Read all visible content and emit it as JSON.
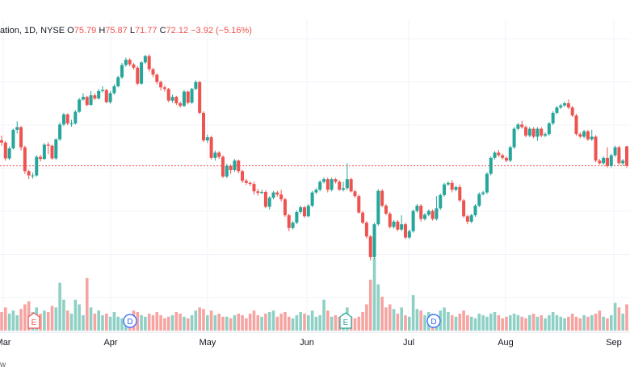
{
  "header": {
    "symbol_fragment": "ation, 1D, NYSE",
    "open_label": "O",
    "open": "75.79",
    "high_label": "H",
    "high": "75.87",
    "low_label": "L",
    "low": "71.77",
    "close_label": "C",
    "close": "72.12",
    "change": "−3.92 (−5.16%)"
  },
  "watermark_fragment": "w",
  "colors": {
    "up": "#26a69a",
    "down": "#ef5350",
    "up_volume": "#8fd0c5",
    "down_volume": "#f5a4a2",
    "grid": "#f0f3fa",
    "price_line": "#ef5350"
  },
  "chart_data": {
    "type": "candlestick",
    "x_axis_labels": [
      "Mar",
      "Apr",
      "May",
      "Jun",
      "Jul",
      "Aug",
      "Sep"
    ],
    "last_price_line": 72.12,
    "events": [
      {
        "type": "earnings",
        "label": "E",
        "month": "Mar"
      },
      {
        "type": "dividend",
        "label": "D",
        "month": "Apr"
      },
      {
        "type": "earnings",
        "label": "E",
        "month": "Jun"
      },
      {
        "type": "dividend",
        "label": "D",
        "month": "Jul"
      }
    ],
    "candles": [
      [
        76.9,
        76.5,
        77.8,
        75.9,
        24
      ],
      [
        76.5,
        73.5,
        76.8,
        73.1,
        30
      ],
      [
        73.5,
        75.4,
        75.8,
        73.2,
        22
      ],
      [
        75.4,
        78.9,
        79.1,
        75.2,
        26
      ],
      [
        78.9,
        79.4,
        80.5,
        78.2,
        20
      ],
      [
        79.4,
        75.6,
        79.6,
        75.0,
        28
      ],
      [
        75.6,
        71.1,
        75.9,
        70.6,
        34
      ],
      [
        71.1,
        70.3,
        71.4,
        69.6,
        38
      ],
      [
        70.3,
        70.3,
        70.8,
        69.7,
        24
      ],
      [
        70.3,
        73.8,
        74.1,
        70.1,
        30
      ],
      [
        73.8,
        73.4,
        74.2,
        72.9,
        22
      ],
      [
        73.4,
        76.1,
        76.4,
        73.2,
        26
      ],
      [
        76.1,
        75.9,
        76.6,
        74.3,
        24
      ],
      [
        75.9,
        73.5,
        76.1,
        73.3,
        32
      ],
      [
        73.5,
        77.1,
        77.3,
        73.2,
        30
      ],
      [
        77.1,
        79.9,
        80.3,
        76.8,
        62
      ],
      [
        79.9,
        81.8,
        82.1,
        79.6,
        40
      ],
      [
        81.8,
        80.1,
        82.0,
        79.8,
        26
      ],
      [
        80.1,
        80.1,
        80.8,
        79.5,
        22
      ],
      [
        80.1,
        82.3,
        82.6,
        79.9,
        40
      ],
      [
        82.3,
        84.6,
        84.9,
        82.1,
        34
      ],
      [
        84.6,
        85.1,
        85.8,
        84.4,
        20
      ],
      [
        85.1,
        83.6,
        85.3,
        83.3,
        68
      ],
      [
        83.6,
        85.4,
        86.2,
        83.4,
        30
      ],
      [
        85.4,
        84.8,
        85.8,
        84.5,
        22
      ],
      [
        84.8,
        86.2,
        86.6,
        84.6,
        26
      ],
      [
        86.2,
        86.4,
        87.1,
        85.9,
        20
      ],
      [
        86.4,
        84.1,
        86.6,
        83.9,
        22
      ],
      [
        84.1,
        85.8,
        86.2,
        83.8,
        18
      ],
      [
        85.8,
        87.1,
        87.5,
        85.5,
        24
      ],
      [
        87.1,
        88.8,
        89.1,
        86.9,
        18
      ],
      [
        88.8,
        91.1,
        91.5,
        88.5,
        16
      ],
      [
        91.1,
        92.1,
        92.5,
        90.8,
        18
      ],
      [
        92.1,
        91.2,
        92.4,
        90.9,
        20
      ],
      [
        91.2,
        90.6,
        91.5,
        90.2,
        26
      ],
      [
        90.6,
        87.6,
        90.9,
        87.3,
        24
      ],
      [
        87.6,
        91.6,
        91.8,
        87.4,
        20
      ],
      [
        91.6,
        92.8,
        93.0,
        91.3,
        18
      ],
      [
        92.8,
        90.3,
        93.1,
        89.9,
        22
      ],
      [
        90.3,
        89.3,
        90.6,
        88.8,
        20
      ],
      [
        89.3,
        87.9,
        89.5,
        87.5,
        24
      ],
      [
        87.9,
        86.9,
        88.2,
        86.3,
        20
      ],
      [
        86.9,
        86.6,
        87.3,
        86.1,
        16
      ],
      [
        86.6,
        84.4,
        86.8,
        84.1,
        18
      ],
      [
        84.4,
        85.1,
        85.5,
        84.0,
        20
      ],
      [
        85.1,
        83.9,
        85.3,
        83.6,
        24
      ],
      [
        83.9,
        83.4,
        84.2,
        83.1,
        22
      ],
      [
        83.4,
        86.1,
        86.4,
        83.2,
        18
      ],
      [
        86.1,
        84.0,
        86.3,
        83.7,
        16
      ],
      [
        84.0,
        86.6,
        86.8,
        83.8,
        20
      ],
      [
        86.6,
        87.9,
        88.2,
        86.4,
        26
      ],
      [
        87.9,
        82.1,
        88.1,
        81.8,
        30
      ],
      [
        82.1,
        76.9,
        82.4,
        76.6,
        28
      ],
      [
        76.9,
        77.5,
        78.0,
        76.4,
        20
      ],
      [
        77.5,
        73.6,
        77.8,
        73.3,
        26
      ],
      [
        73.6,
        74.6,
        75.0,
        73.1,
        20
      ],
      [
        74.6,
        73.8,
        74.9,
        73.4,
        22
      ],
      [
        73.8,
        70.1,
        74.1,
        69.8,
        18
      ],
      [
        70.1,
        72.1,
        72.5,
        69.8,
        18
      ],
      [
        72.1,
        71.3,
        72.4,
        70.6,
        16
      ],
      [
        71.3,
        73.1,
        73.4,
        71.0,
        20
      ],
      [
        73.1,
        71.1,
        73.3,
        70.7,
        22
      ],
      [
        71.1,
        69.3,
        71.4,
        68.9,
        20
      ],
      [
        69.3,
        68.9,
        69.7,
        68.5,
        16
      ],
      [
        68.9,
        68.7,
        69.2,
        68.3,
        22
      ],
      [
        68.7,
        67.3,
        69.1,
        66.7,
        26
      ],
      [
        67.3,
        67.0,
        67.8,
        66.5,
        20
      ],
      [
        67.0,
        67.2,
        67.6,
        66.8,
        18
      ],
      [
        67.2,
        64.4,
        67.5,
        64.1,
        22
      ],
      [
        64.4,
        66.1,
        66.4,
        63.9,
        24
      ],
      [
        66.1,
        67.1,
        67.4,
        65.8,
        26
      ],
      [
        67.1,
        66.7,
        67.4,
        66.3,
        18
      ],
      [
        66.7,
        65.8,
        67.6,
        65.4,
        22
      ],
      [
        65.8,
        62.8,
        66.1,
        62.5,
        24
      ],
      [
        62.8,
        60.4,
        63.1,
        59.8,
        18
      ],
      [
        60.4,
        61.4,
        61.7,
        60.1,
        16
      ],
      [
        61.4,
        63.4,
        63.7,
        61.1,
        20
      ],
      [
        63.4,
        64.3,
        64.6,
        63.1,
        24
      ],
      [
        64.3,
        62.6,
        64.6,
        62.3,
        22
      ],
      [
        62.6,
        64.6,
        64.9,
        62.4,
        20
      ],
      [
        64.6,
        67.1,
        67.4,
        64.3,
        26
      ],
      [
        67.1,
        67.6,
        67.9,
        66.8,
        18
      ],
      [
        67.6,
        69.1,
        69.4,
        67.3,
        20
      ],
      [
        69.1,
        69.6,
        69.9,
        68.8,
        40
      ],
      [
        69.6,
        67.6,
        69.9,
        67.1,
        26
      ],
      [
        67.6,
        69.6,
        69.9,
        67.3,
        18
      ],
      [
        69.6,
        69.1,
        69.8,
        68.8,
        20
      ],
      [
        69.1,
        67.6,
        69.4,
        67.4,
        18
      ],
      [
        67.6,
        67.9,
        69.1,
        67.3,
        22
      ],
      [
        67.9,
        69.6,
        72.6,
        67.6,
        30
      ],
      [
        69.6,
        67.3,
        69.9,
        67.1,
        18
      ],
      [
        67.3,
        66.4,
        67.6,
        66.1,
        16
      ],
      [
        66.4,
        63.3,
        66.7,
        63.1,
        18
      ],
      [
        63.3,
        61.4,
        63.6,
        61.1,
        24
      ],
      [
        61.4,
        58.8,
        61.7,
        58.4,
        34
      ],
      [
        58.8,
        54.9,
        59.1,
        54.3,
        66
      ],
      [
        54.9,
        61.1,
        61.4,
        54.6,
        94
      ],
      [
        61.1,
        67.4,
        67.7,
        60.8,
        60
      ],
      [
        67.4,
        64.6,
        67.7,
        64.3,
        44
      ],
      [
        64.6,
        63.1,
        64.9,
        62.8,
        30
      ],
      [
        63.1,
        60.6,
        63.4,
        60.3,
        34
      ],
      [
        60.6,
        61.6,
        61.9,
        60.3,
        28
      ],
      [
        61.6,
        60.1,
        61.9,
        59.8,
        22
      ],
      [
        60.1,
        61.1,
        62.8,
        59.8,
        30
      ],
      [
        61.1,
        58.6,
        61.4,
        58.3,
        20
      ],
      [
        58.6,
        59.8,
        60.1,
        58.3,
        18
      ],
      [
        59.8,
        63.6,
        63.9,
        59.5,
        46
      ],
      [
        63.6,
        64.6,
        64.9,
        63.3,
        28
      ],
      [
        64.6,
        62.1,
        64.9,
        61.6,
        26
      ],
      [
        62.1,
        62.9,
        63.2,
        61.8,
        20
      ],
      [
        62.9,
        63.6,
        63.9,
        62.6,
        24
      ],
      [
        63.6,
        62.1,
        63.9,
        61.8,
        22
      ],
      [
        62.1,
        64.1,
        66.4,
        61.8,
        20
      ],
      [
        64.1,
        66.6,
        66.9,
        63.8,
        26
      ],
      [
        66.6,
        68.6,
        68.9,
        66.3,
        30
      ],
      [
        68.6,
        68.9,
        69.2,
        68.3,
        24
      ],
      [
        68.9,
        67.6,
        69.4,
        67.1,
        20
      ],
      [
        67.6,
        68.1,
        68.4,
        67.3,
        18
      ],
      [
        68.1,
        65.6,
        68.6,
        65.3,
        22
      ],
      [
        65.6,
        62.6,
        65.9,
        62.3,
        26
      ],
      [
        62.6,
        61.6,
        62.9,
        61.1,
        20
      ],
      [
        61.6,
        62.8,
        63.1,
        61.3,
        18
      ],
      [
        62.8,
        64.6,
        64.9,
        62.5,
        16
      ],
      [
        64.6,
        66.8,
        67.1,
        64.3,
        22
      ],
      [
        66.8,
        67.1,
        67.4,
        66.5,
        20
      ],
      [
        67.1,
        70.6,
        70.9,
        66.8,
        18
      ],
      [
        70.6,
        73.6,
        73.9,
        70.3,
        22
      ],
      [
        73.6,
        74.6,
        74.9,
        73.3,
        24
      ],
      [
        74.6,
        74.1,
        75.1,
        73.8,
        20
      ],
      [
        74.1,
        73.6,
        74.4,
        73.3,
        16
      ],
      [
        73.6,
        73.1,
        73.9,
        72.8,
        18
      ],
      [
        73.1,
        75.6,
        75.9,
        72.8,
        20
      ],
      [
        75.6,
        79.1,
        79.4,
        75.3,
        22
      ],
      [
        79.1,
        79.9,
        80.2,
        78.8,
        20
      ],
      [
        79.9,
        79.4,
        80.6,
        79.1,
        18
      ],
      [
        79.4,
        77.8,
        79.7,
        77.5,
        16
      ],
      [
        77.8,
        79.1,
        79.4,
        77.5,
        20
      ],
      [
        79.1,
        77.6,
        79.4,
        77.3,
        22
      ],
      [
        77.6,
        79.1,
        79.4,
        76.8,
        18
      ],
      [
        79.1,
        77.8,
        79.4,
        77.5,
        20
      ],
      [
        77.8,
        78.1,
        78.4,
        77.5,
        16
      ],
      [
        78.1,
        80.1,
        80.4,
        77.8,
        20
      ],
      [
        80.1,
        82.1,
        82.4,
        79.8,
        24
      ],
      [
        82.1,
        83.1,
        83.4,
        81.8,
        20
      ],
      [
        83.1,
        83.5,
        83.8,
        82.8,
        18
      ],
      [
        83.5,
        83.9,
        84.2,
        83.2,
        16
      ],
      [
        83.9,
        83.1,
        84.6,
        82.8,
        18
      ],
      [
        83.1,
        81.6,
        83.4,
        81.3,
        22
      ],
      [
        81.6,
        78.1,
        81.9,
        77.8,
        18
      ],
      [
        78.1,
        77.6,
        78.4,
        77.3,
        16
      ],
      [
        77.6,
        78.6,
        78.9,
        77.3,
        20
      ],
      [
        78.6,
        77.1,
        78.9,
        76.8,
        18
      ],
      [
        77.1,
        77.6,
        78.9,
        76.8,
        20
      ],
      [
        77.6,
        73.1,
        77.9,
        72.8,
        22
      ],
      [
        73.1,
        72.6,
        73.4,
        72.3,
        26
      ],
      [
        72.6,
        73.6,
        73.9,
        72.3,
        18
      ],
      [
        73.6,
        72.1,
        75.6,
        71.8,
        16
      ],
      [
        72.1,
        74.1,
        74.4,
        71.8,
        20
      ],
      [
        74.1,
        75.6,
        75.9,
        73.8,
        36
      ],
      [
        75.6,
        72.6,
        75.9,
        72.3,
        30
      ],
      [
        72.6,
        73.1,
        73.4,
        72.1,
        22
      ],
      [
        75.79,
        72.12,
        75.87,
        71.77,
        34
      ]
    ]
  }
}
